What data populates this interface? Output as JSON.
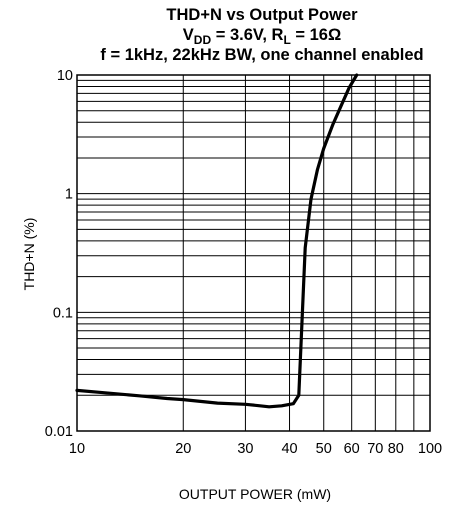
{
  "chart_data": {
    "type": "line",
    "title": {
      "line1": "THD+N vs Output Power",
      "line2": {
        "vdd_main": "V",
        "vdd_sub": "DD",
        "vdd_value": " = 3.6V, R",
        "rl_sub": "L",
        "rl_value": " = 16Ω"
      },
      "line3": "f = 1kHz, 22kHz BW, one channel enabled"
    },
    "xlabel": "OUTPUT POWER (mW)",
    "ylabel": "THD+N (%)",
    "x_scale": "log",
    "y_scale": "log",
    "xlim": [
      10,
      100
    ],
    "ylim": [
      0.01,
      10
    ],
    "grid": true,
    "x_tick_labels": [
      {
        "value": 10,
        "label": "10"
      },
      {
        "value": 20,
        "label": "20"
      },
      {
        "value": 30,
        "label": "30"
      },
      {
        "value": 40,
        "label": "40"
      },
      {
        "value": 50,
        "label": "50"
      },
      {
        "value": 60,
        "label": "60"
      },
      {
        "value": 70,
        "label": "70"
      },
      {
        "value": 80,
        "label": "80"
      },
      {
        "value": 100,
        "label": "100"
      }
    ],
    "y_tick_labels": [
      {
        "value": 0.01,
        "label": "0.01"
      },
      {
        "value": 0.1,
        "label": "0.1"
      },
      {
        "value": 1,
        "label": "1"
      },
      {
        "value": 10,
        "label": "10"
      }
    ],
    "series": [
      {
        "color": "#000000",
        "points": [
          {
            "x": 10,
            "y": 0.022
          },
          {
            "x": 12,
            "y": 0.021
          },
          {
            "x": 15,
            "y": 0.0198
          },
          {
            "x": 18,
            "y": 0.0188
          },
          {
            "x": 20,
            "y": 0.0184
          },
          {
            "x": 25,
            "y": 0.0172
          },
          {
            "x": 30,
            "y": 0.0168
          },
          {
            "x": 33,
            "y": 0.0163
          },
          {
            "x": 35,
            "y": 0.016
          },
          {
            "x": 38,
            "y": 0.0163
          },
          {
            "x": 41,
            "y": 0.017
          },
          {
            "x": 42.5,
            "y": 0.02
          },
          {
            "x": 43.5,
            "y": 0.1
          },
          {
            "x": 44.3,
            "y": 0.35
          },
          {
            "x": 46,
            "y": 0.9
          },
          {
            "x": 48,
            "y": 1.6
          },
          {
            "x": 50,
            "y": 2.4
          },
          {
            "x": 53,
            "y": 3.8
          },
          {
            "x": 56,
            "y": 5.5
          },
          {
            "x": 59,
            "y": 7.8
          },
          {
            "x": 62,
            "y": 10
          }
        ]
      }
    ]
  }
}
